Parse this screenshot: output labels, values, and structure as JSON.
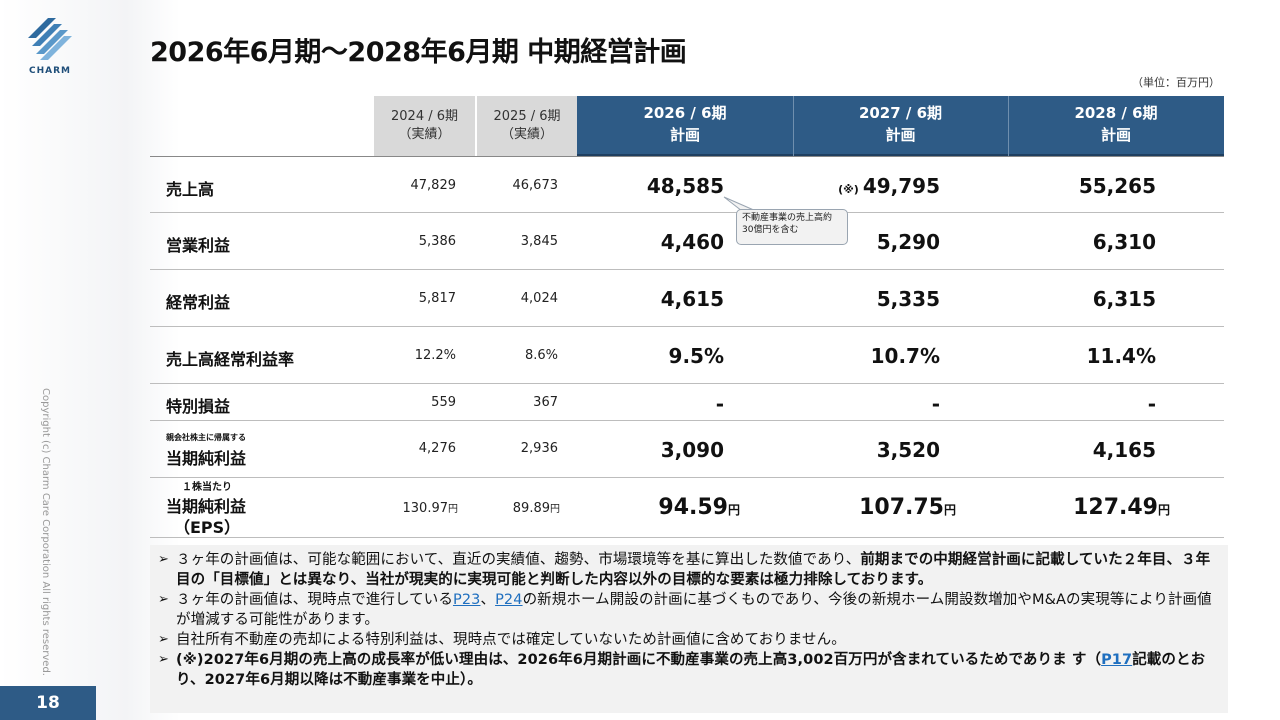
{
  "brand": {
    "logo_text": "CHARM",
    "accent": "#2e5b86"
  },
  "copyright": "Copyright (c) Charm Care Corporation All rights reserved.",
  "page_number": "18",
  "title": "2026年6月期～2028年6月期 中期経営計画",
  "unit": "（単位：百万円）",
  "columns": [
    {
      "line1": "2024 / 6期",
      "line2": "（実績）"
    },
    {
      "line1": "2025 / 6期",
      "line2": "（実績）"
    },
    {
      "line1": "2026 / 6期",
      "line2": "計画"
    },
    {
      "line1": "2027 / 6期",
      "line2": "計画"
    },
    {
      "line1": "2028 / 6期",
      "line2": "計画"
    }
  ],
  "rows": [
    {
      "label": "売上高",
      "sub": "",
      "a2024": "47,829",
      "a2025": "46,673",
      "p2026": "48,585",
      "p2027": "49,795",
      "p2028": "55,265",
      "note2027": "(※)"
    },
    {
      "label": "営業利益",
      "sub": "",
      "a2024": "5,386",
      "a2025": "3,845",
      "p2026": "4,460",
      "p2027": "5,290",
      "p2028": "6,310"
    },
    {
      "label": "経常利益",
      "sub": "",
      "a2024": "5,817",
      "a2025": "4,024",
      "p2026": "4,615",
      "p2027": "5,335",
      "p2028": "6,315"
    },
    {
      "label": "売上高経常利益率",
      "sub": "",
      "a2024": "12.2%",
      "a2025": "8.6%",
      "p2026": "9.5%",
      "p2027": "10.7%",
      "p2028": "11.4%"
    },
    {
      "label": "特別損益",
      "sub": "",
      "a2024": "559",
      "a2025": "367",
      "p2026": "-",
      "p2027": "-",
      "p2028": "-"
    },
    {
      "label": "当期純利益",
      "sub": "親会社株主に帰属する",
      "a2024": "4,276",
      "a2025": "2,936",
      "p2026": "3,090",
      "p2027": "3,520",
      "p2028": "4,165"
    },
    {
      "label": "当期純利益",
      "label2": "（EPS）",
      "sub": "１株当たり",
      "a2024": "130.97",
      "a2025": "89.89",
      "p2026": "94.59",
      "p2027": "107.75",
      "p2028": "127.49",
      "yen": "円"
    }
  ],
  "callout": "不動産事業の売上高約30億円を含む",
  "notes": {
    "n1_plain": "３ヶ年の計画値は、可能な範囲において、直近の実績値、趨勢、市場環境等を基に算出した数値であり、",
    "n1_bold": "前期までの中期経営計画に記載していた２年目、３年目の「目標値」とは異なり、当社が現実的に実現可能と判断した内容以外の目標的な要素は極力排除しております。",
    "n2_a": "３ヶ年の計画値は、現時点で進行している",
    "n2_link1": "P23",
    "n2_sep": "、",
    "n2_link2": "P24",
    "n2_b": "の新規ホーム開設の計画に基づくものであり、今後の新規ホーム開設数増加やM&Aの実現等により計画値が増減する可能性があります。",
    "n3": "自社所有不動産の売却による特別利益は、現時点では確定していないため計画値に含めておりません。",
    "n4_a": "(※)2027年6月期の売上高の成長率が低い理由は、2026年6月期計画に不動産事業の売上高3,002百万円が含まれているためでありま す（",
    "n4_link": "P17",
    "n4_b": "記載のとおり、2027年6月期以降は不動産事業を中止）。"
  }
}
